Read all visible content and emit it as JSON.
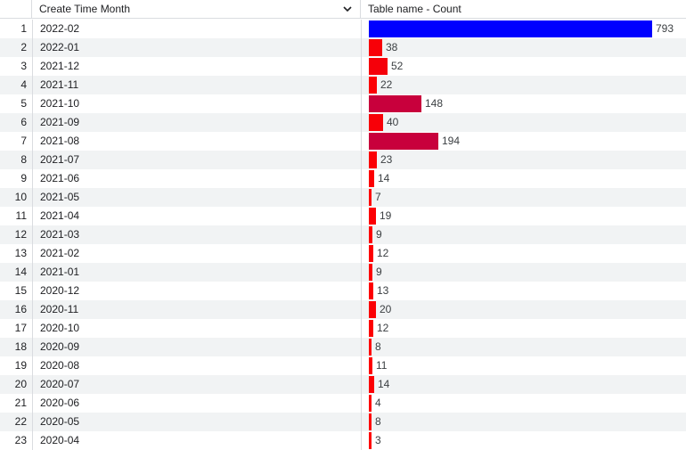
{
  "header": {
    "month_label": "Create Time Month",
    "count_label": "Table name - Count",
    "sort_icon": "chevron-down-icon"
  },
  "colors": {
    "max_bar": "#0000ff",
    "low_bar": "#ff0000",
    "mid_bar": "#c8003c"
  },
  "chart_data": {
    "type": "table",
    "columns": [
      "Create Time Month",
      "Table name - Count"
    ],
    "max_value": 793,
    "rows": [
      {
        "index": "1",
        "month": "2022-02",
        "count": 793
      },
      {
        "index": "2",
        "month": "2022-01",
        "count": 38
      },
      {
        "index": "3",
        "month": "2021-12",
        "count": 52
      },
      {
        "index": "4",
        "month": "2021-11",
        "count": 22
      },
      {
        "index": "5",
        "month": "2021-10",
        "count": 148
      },
      {
        "index": "6",
        "month": "2021-09",
        "count": 40
      },
      {
        "index": "7",
        "month": "2021-08",
        "count": 194
      },
      {
        "index": "8",
        "month": "2021-07",
        "count": 23
      },
      {
        "index": "9",
        "month": "2021-06",
        "count": 14
      },
      {
        "index": "10",
        "month": "2021-05",
        "count": 7
      },
      {
        "index": "11",
        "month": "2021-04",
        "count": 19
      },
      {
        "index": "12",
        "month": "2021-03",
        "count": 9
      },
      {
        "index": "13",
        "month": "2021-02",
        "count": 12
      },
      {
        "index": "14",
        "month": "2021-01",
        "count": 9
      },
      {
        "index": "15",
        "month": "2020-12",
        "count": 13
      },
      {
        "index": "16",
        "month": "2020-11",
        "count": 20
      },
      {
        "index": "17",
        "month": "2020-10",
        "count": 12
      },
      {
        "index": "18",
        "month": "2020-09",
        "count": 8
      },
      {
        "index": "19",
        "month": "2020-08",
        "count": 11
      },
      {
        "index": "20",
        "month": "2020-07",
        "count": 14
      },
      {
        "index": "21",
        "month": "2020-06",
        "count": 4
      },
      {
        "index": "22",
        "month": "2020-05",
        "count": 8
      },
      {
        "index": "23",
        "month": "2020-04",
        "count": 3
      }
    ]
  }
}
